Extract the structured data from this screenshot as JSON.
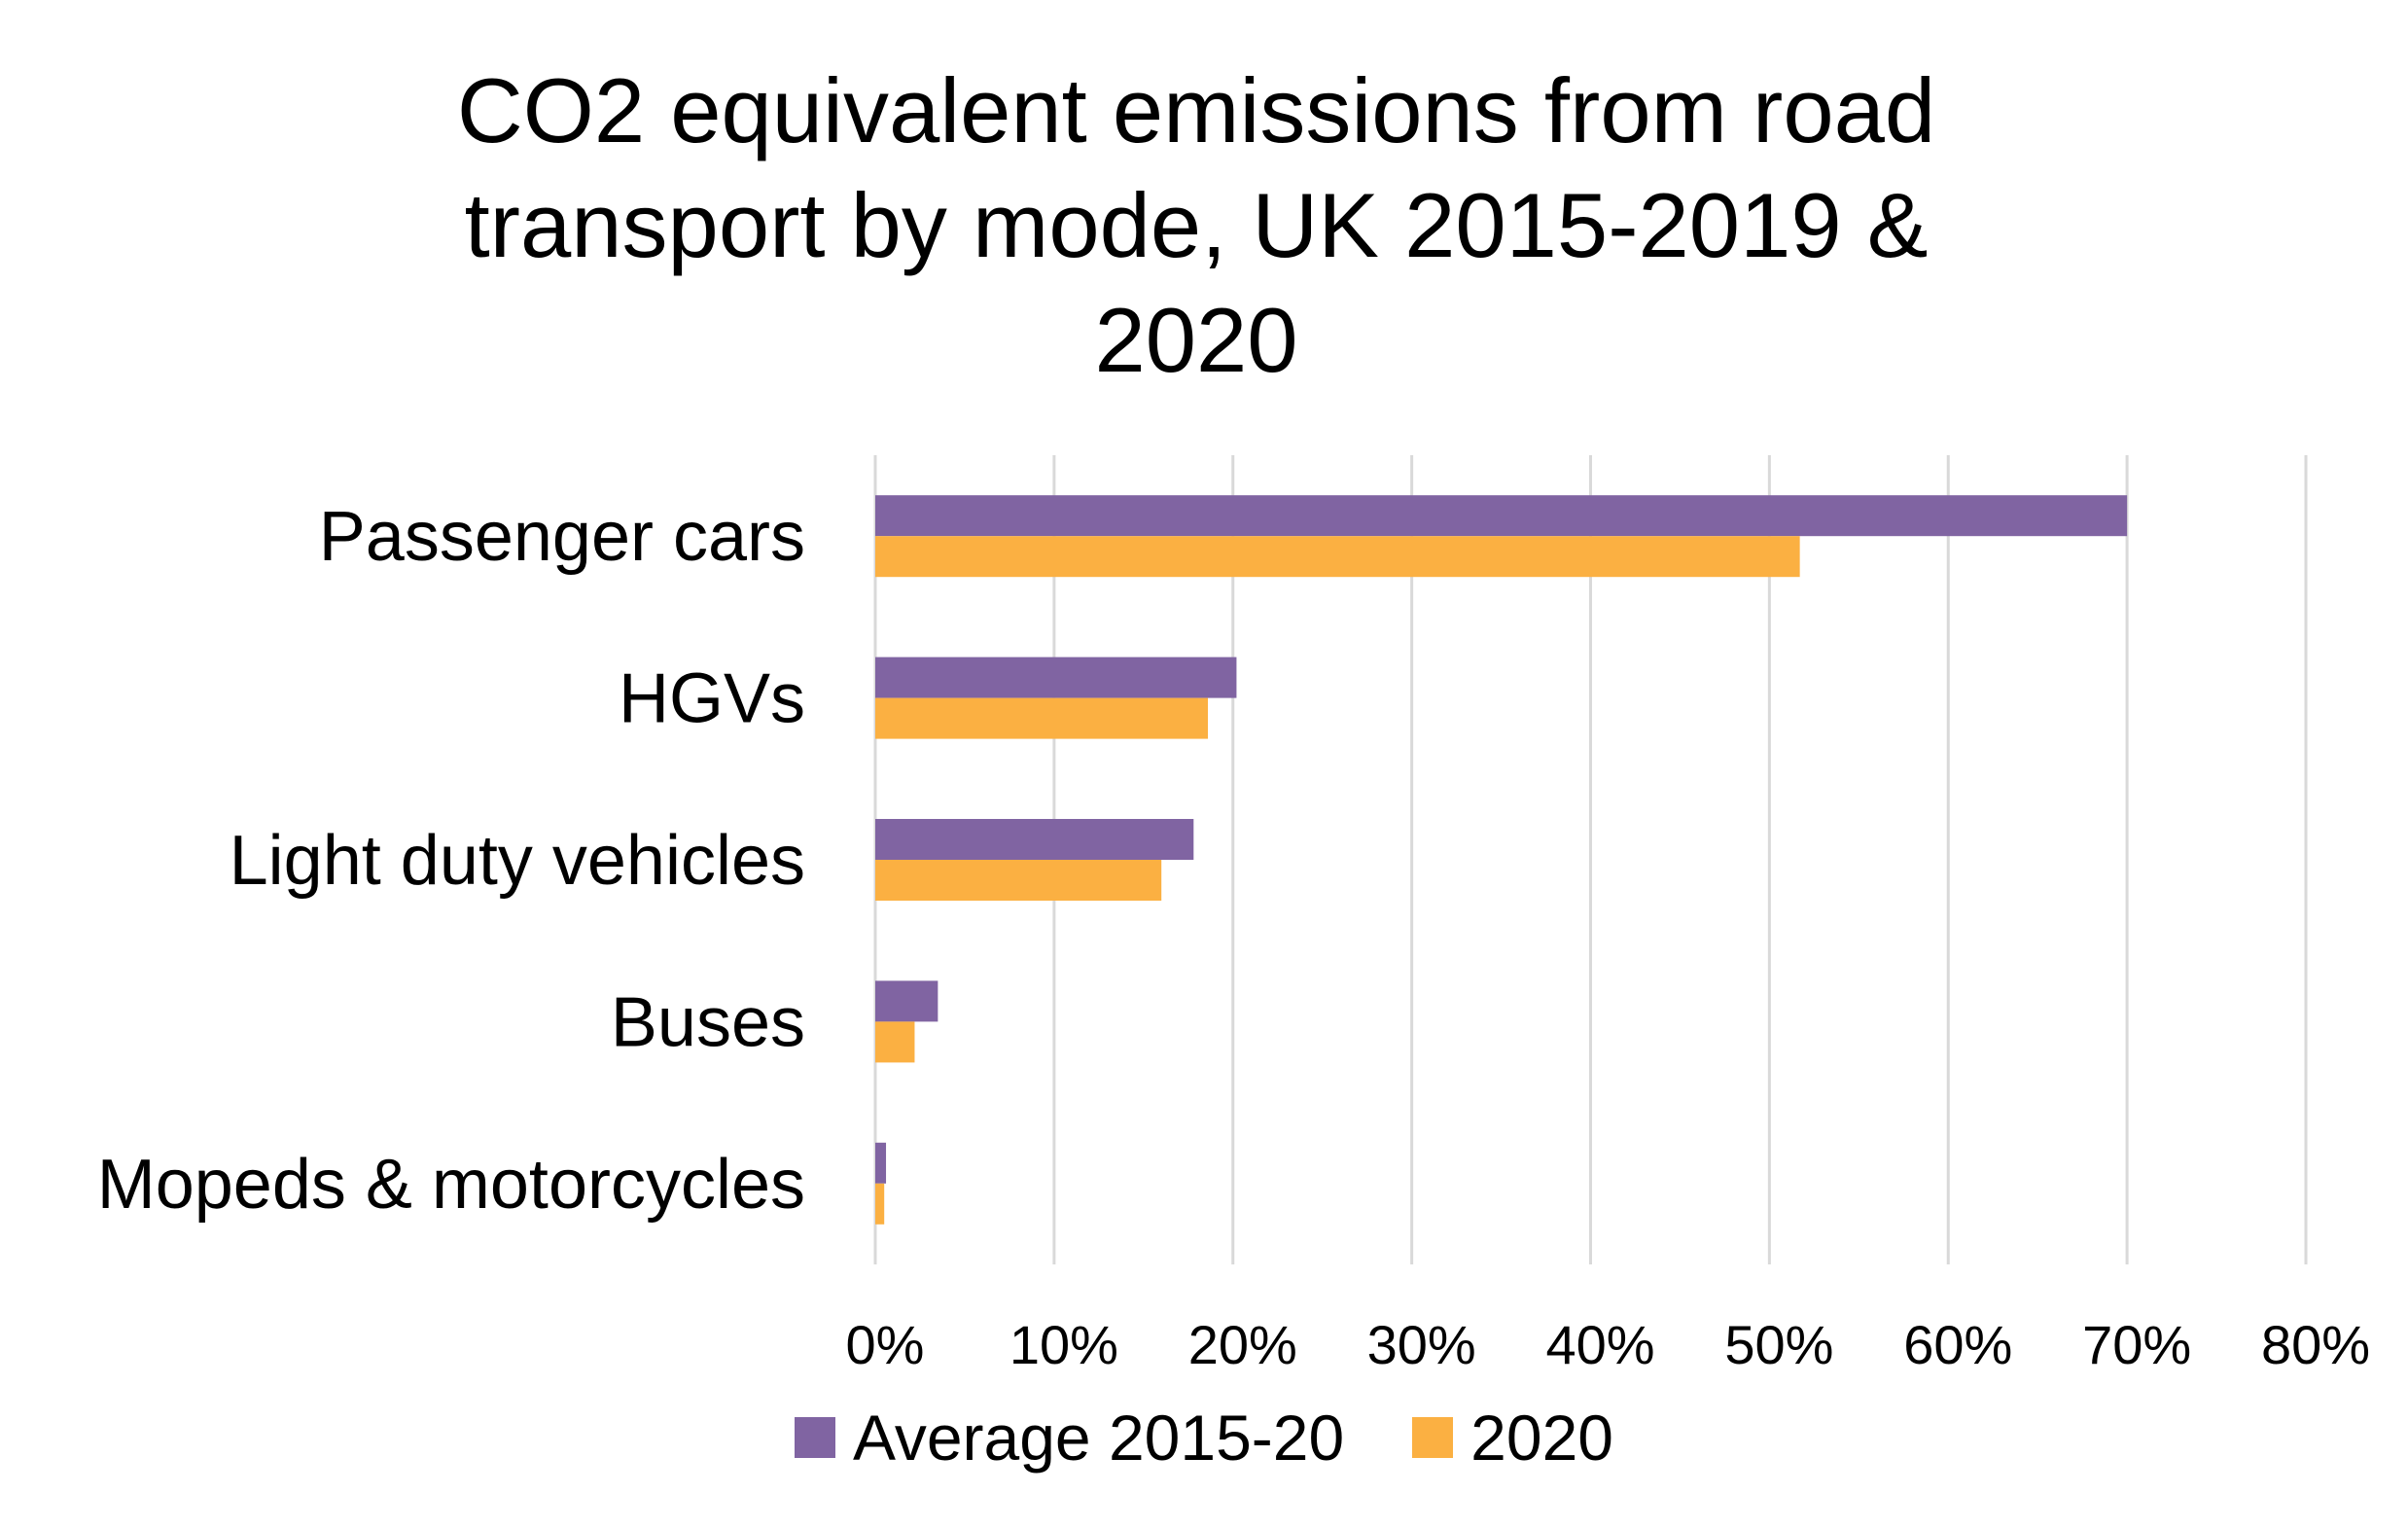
{
  "chart_data": {
    "type": "bar",
    "orientation": "horizontal",
    "title_lines": [
      "CO2 equivalent emissions from road",
      "transport by mode, UK 2015-2019 &",
      "2020"
    ],
    "categories": [
      "Passenger cars",
      "HGVs",
      "Light duty vehicles",
      "Buses",
      "Mopeds & motorcycles"
    ],
    "series": [
      {
        "name": "Average 2015-20",
        "color": "#8064a2",
        "values": [
          70,
          20.2,
          17.8,
          3.5,
          0.6
        ]
      },
      {
        "name": "2020",
        "color": "#fbb042",
        "values": [
          51.7,
          18.6,
          16.0,
          2.2,
          0.5
        ]
      }
    ],
    "xlim": [
      0,
      80
    ],
    "x_ticks": [
      "0%",
      "10%",
      "20%",
      "30%",
      "40%",
      "50%",
      "60%",
      "70%",
      "80%"
    ],
    "grid": true,
    "legend_position": "bottom",
    "xlabel": "",
    "ylabel": ""
  }
}
